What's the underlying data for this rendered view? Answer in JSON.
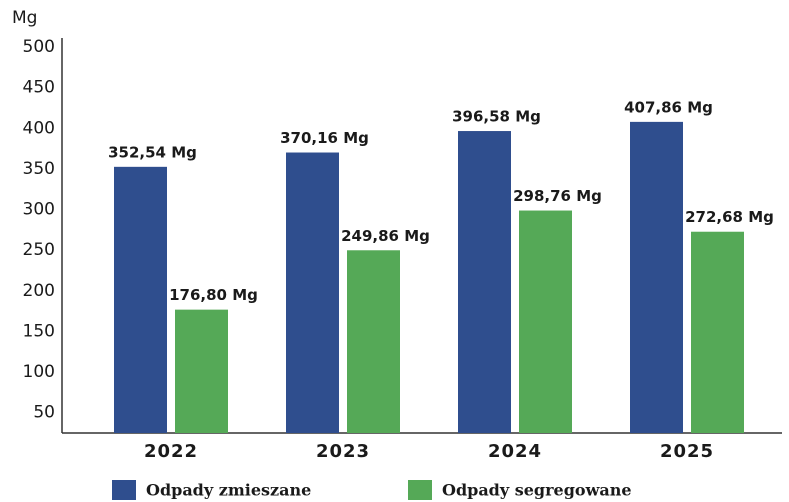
{
  "chart_data": {
    "type": "bar",
    "y_axis_label": "Mg",
    "categories": [
      "2022",
      "2023",
      "2024",
      "2025"
    ],
    "series": [
      {
        "name": "Odpady zmieszane",
        "color": "#2f4e8e",
        "values": [
          352.54,
          370.16,
          396.58,
          407.86
        ],
        "value_labels": [
          "352,54 Mg",
          "370,16 Mg",
          "396,58 Mg",
          "407,86 Mg"
        ]
      },
      {
        "name": "Odpady segregowane",
        "color": "#55a957",
        "values": [
          176.8,
          249.86,
          298.76,
          272.68
        ],
        "value_labels": [
          "176,80 Mg",
          "249,86 Mg",
          "298,76 Mg",
          "272,68 Mg"
        ]
      }
    ],
    "ylim": [
      25,
      500
    ],
    "yticks": [
      50,
      100,
      150,
      200,
      250,
      300,
      350,
      400,
      450,
      500
    ],
    "grid": false
  }
}
